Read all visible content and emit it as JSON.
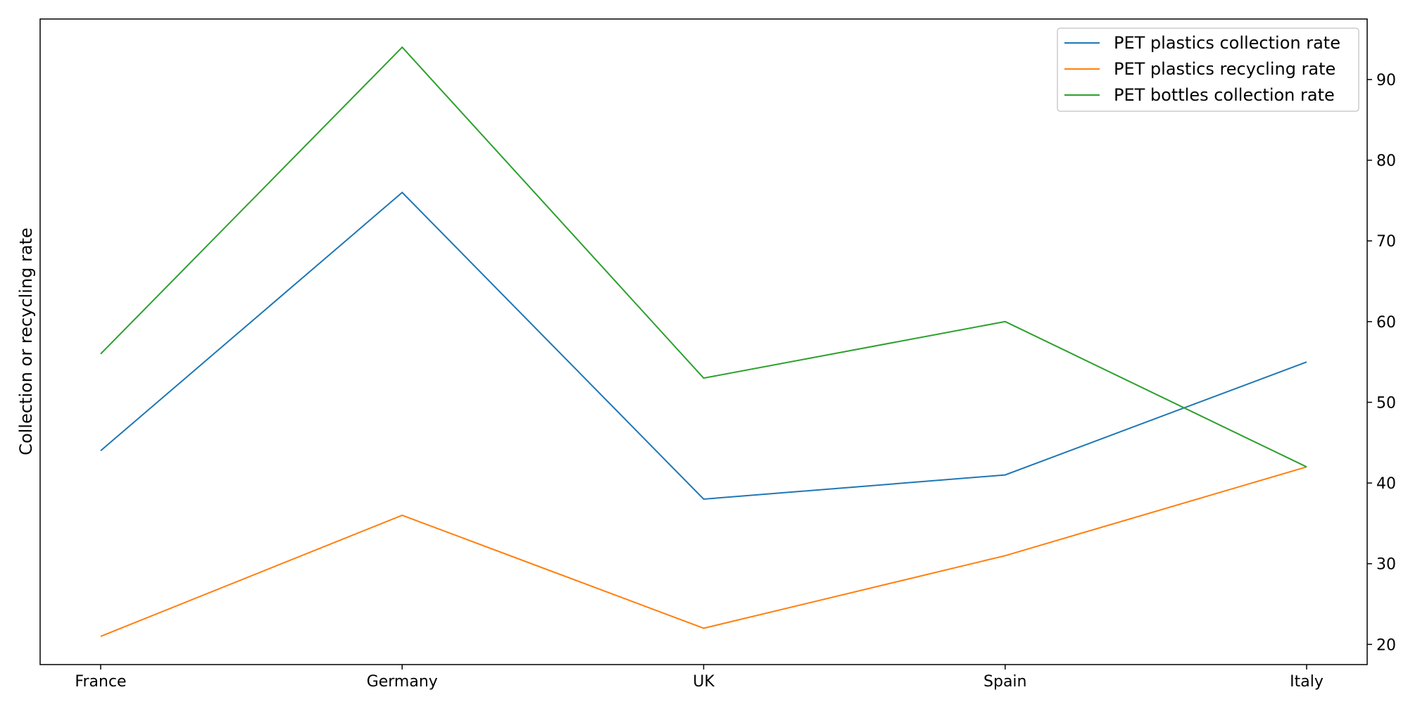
{
  "chart_data": {
    "type": "line",
    "title": "",
    "xlabel": "",
    "ylabel": "Collection or recycling rate",
    "y_axis_side": "right",
    "ylim": [
      17.5,
      97.5
    ],
    "yticks": [
      20,
      30,
      40,
      50,
      60,
      70,
      80,
      90
    ],
    "grid": false,
    "legend_position": "top-right",
    "categories": [
      "France",
      "Germany",
      "UK",
      "Spain",
      "Italy"
    ],
    "series": [
      {
        "name": "PET plastics collection rate",
        "color": "#1f77b4",
        "values": [
          44,
          76,
          38,
          41,
          55
        ]
      },
      {
        "name": "PET plastics recycling rate",
        "color": "#ff7f0e",
        "values": [
          21,
          36,
          22,
          31,
          42
        ]
      },
      {
        "name": "PET bottles collection rate",
        "color": "#2ca02c",
        "values": [
          56,
          94,
          53,
          60,
          42
        ]
      }
    ]
  }
}
